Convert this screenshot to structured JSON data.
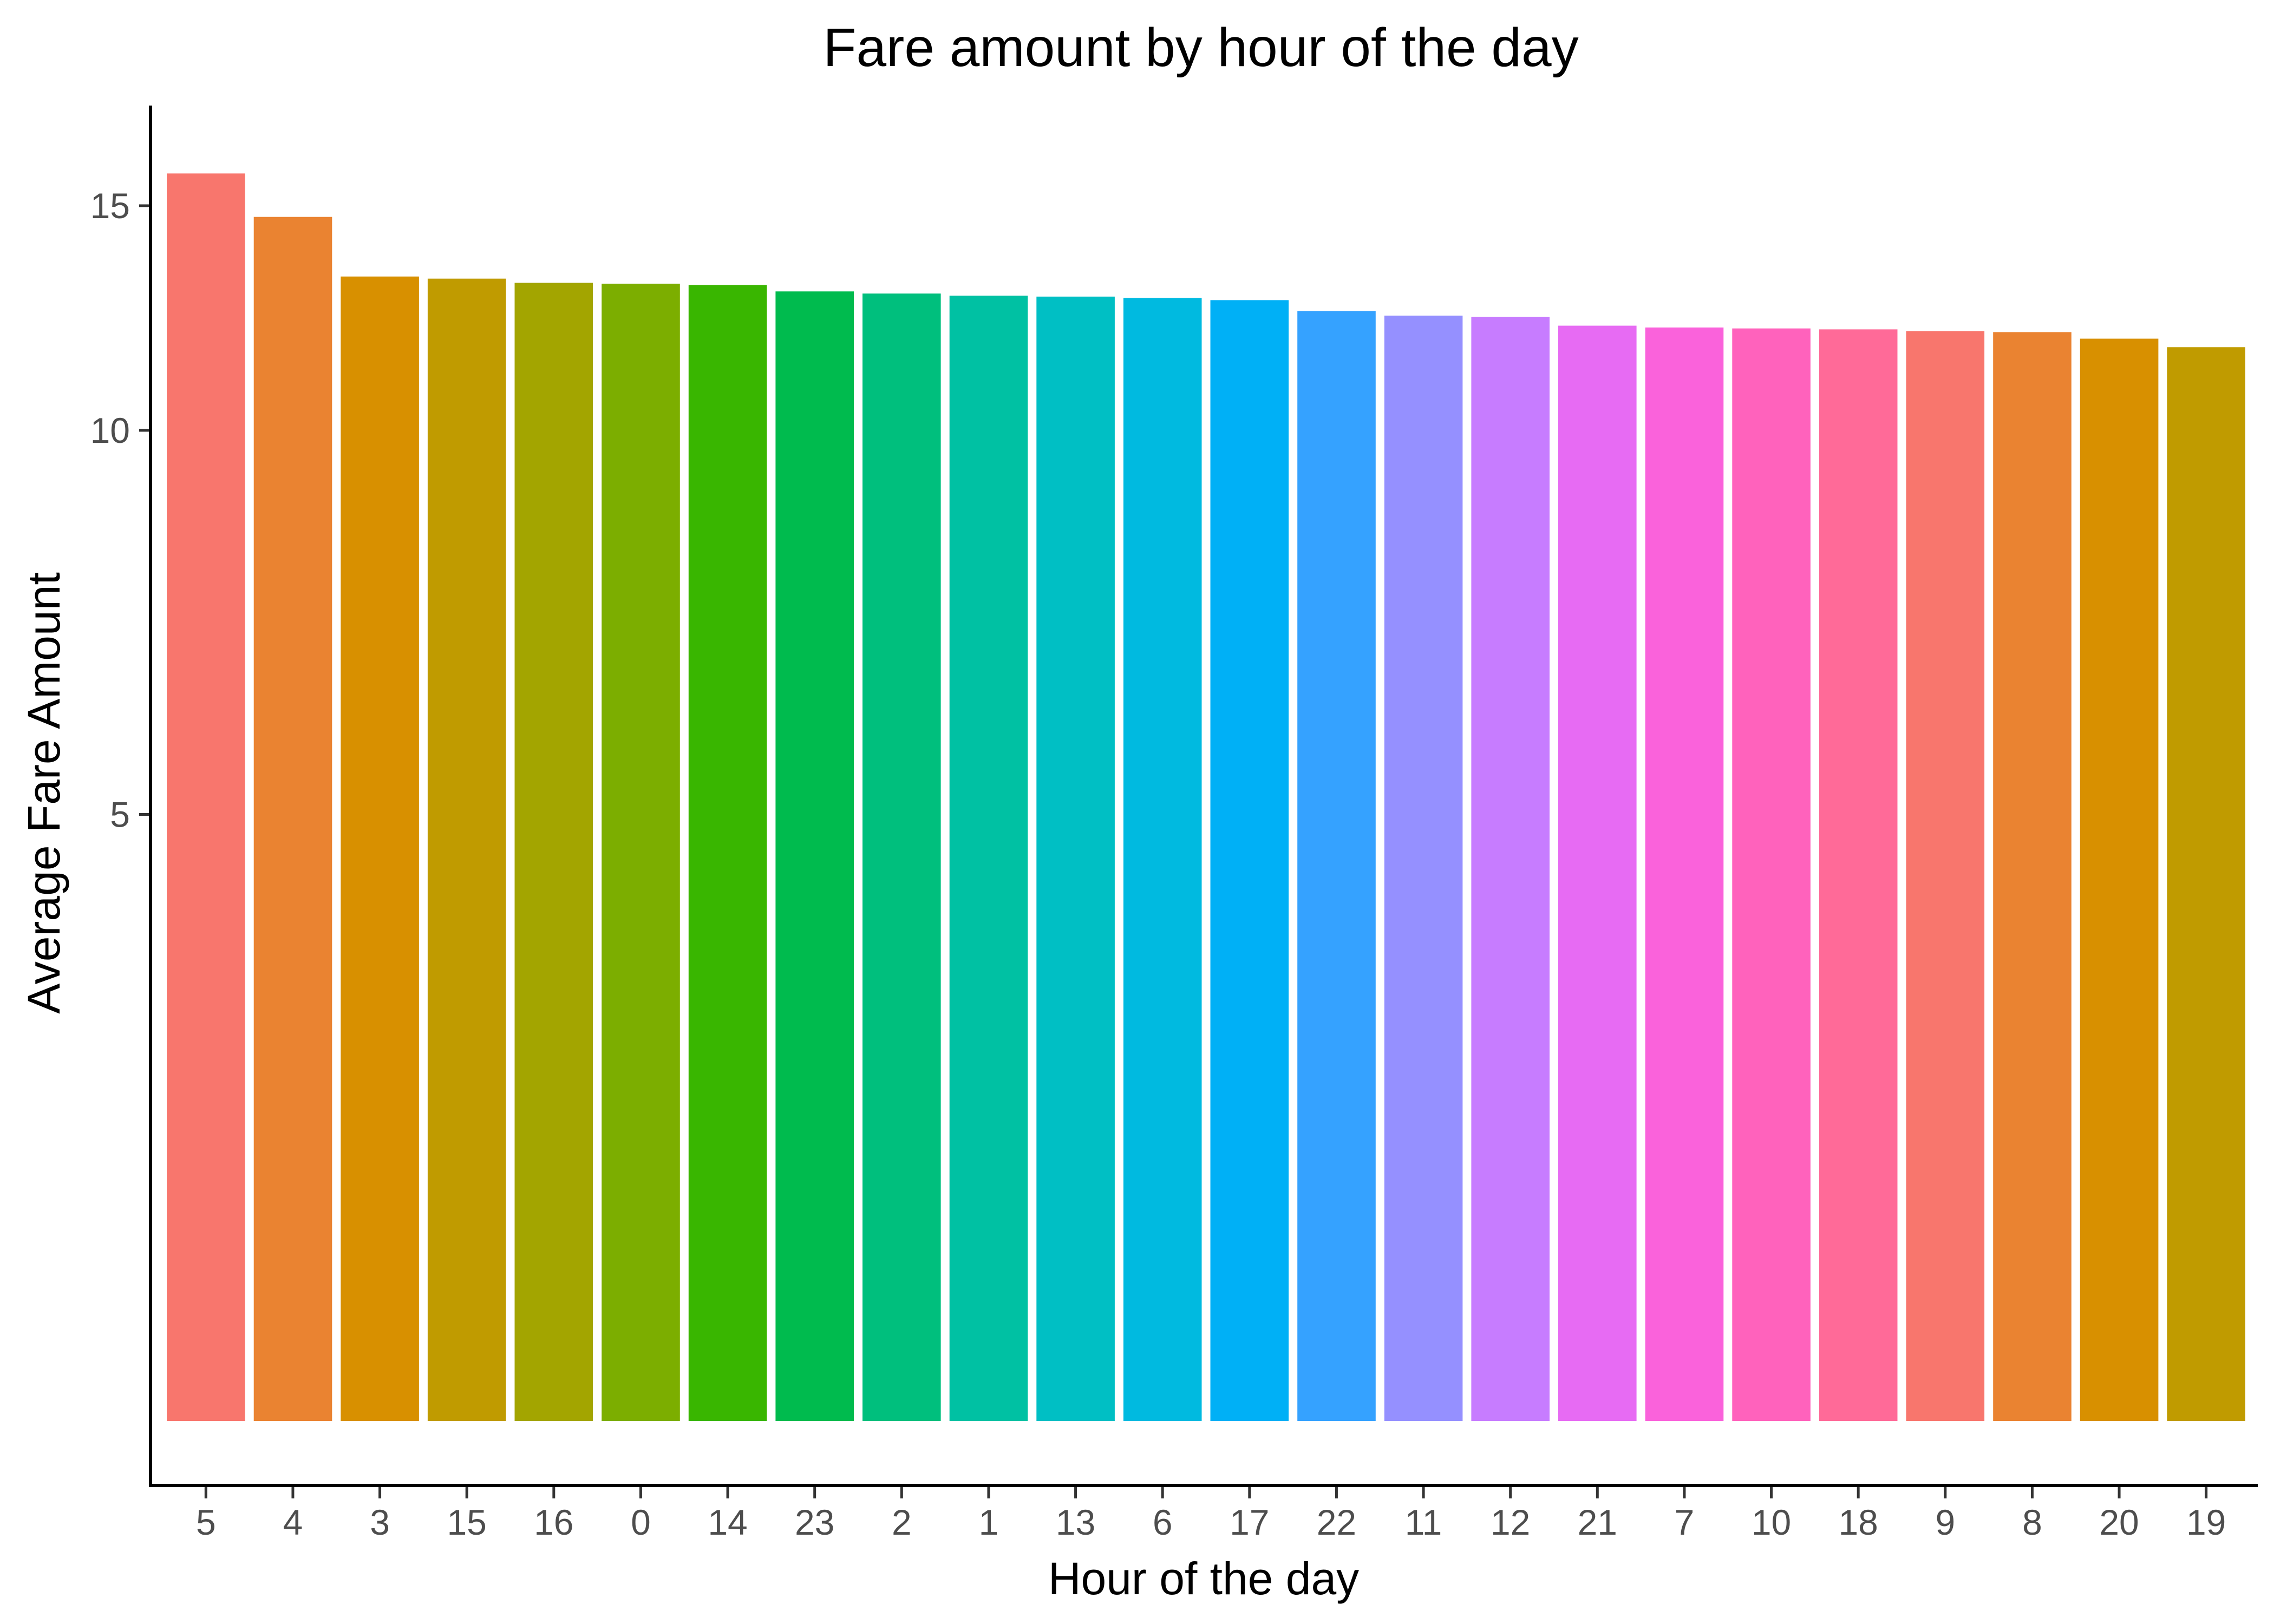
{
  "chart_data": {
    "type": "bar",
    "title": "Fare amount by hour of the day",
    "xlabel": "Hour of the day",
    "ylabel": "Average Fare Amount",
    "y_scale": "log",
    "y_ticks": [
      5,
      10,
      15
    ],
    "ylim": [
      1.3,
      17.5
    ],
    "grid": false,
    "legend": "none",
    "categories": [
      "5",
      "4",
      "3",
      "15",
      "16",
      "0",
      "14",
      "23",
      "2",
      "1",
      "13",
      "6",
      "17",
      "22",
      "11",
      "12",
      "21",
      "7",
      "10",
      "18",
      "9",
      "8",
      "20",
      "19"
    ],
    "values": [
      15.9,
      14.7,
      13.2,
      13.15,
      13.05,
      13.03,
      13.0,
      12.85,
      12.8,
      12.75,
      12.73,
      12.7,
      12.65,
      12.4,
      12.3,
      12.27,
      12.08,
      12.04,
      12.02,
      12.0,
      11.96,
      11.94,
      11.8,
      11.62
    ],
    "colors": [
      "#F8766D",
      "#EA8331",
      "#D89000",
      "#C09B00",
      "#A3A500",
      "#7CAE00",
      "#39B600",
      "#00BB4E",
      "#00BF7D",
      "#00C1A3",
      "#00BFC4",
      "#00BAE0",
      "#00B0F6",
      "#35A2FF",
      "#9590FF",
      "#C77CFF",
      "#E76BF3",
      "#FA62DB",
      "#FF62BC",
      "#FF6A98",
      "#F8766D",
      "#EA8331",
      "#D89000",
      "#C09B00"
    ]
  }
}
